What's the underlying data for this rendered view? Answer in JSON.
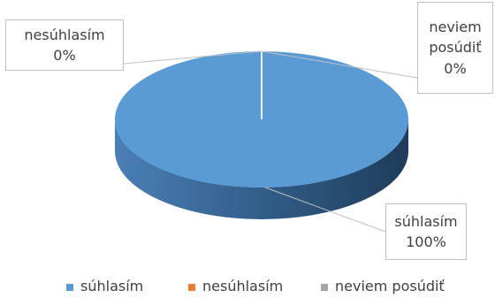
{
  "chart_data": {
    "type": "pie",
    "categories": [
      "súhlasím",
      "nesúhlasím",
      "neviem posúdiť"
    ],
    "values": [
      100,
      0,
      0
    ],
    "value_labels": [
      "100%",
      "0%",
      "0%"
    ],
    "colors": [
      "#5b9bd5",
      "#ed7d31",
      "#a5a5a5"
    ],
    "legend": "bottom"
  }
}
